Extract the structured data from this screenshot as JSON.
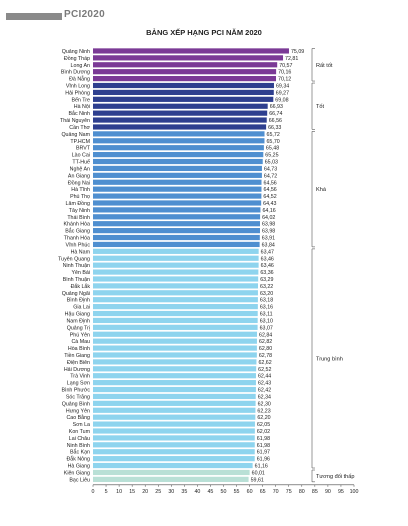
{
  "header": {
    "brand": "PCI2020"
  },
  "chart_data": {
    "type": "bar",
    "orientation": "horizontal",
    "title": "BẢNG XẾP HẠNG PCI NĂM 2020",
    "xlim": [
      0,
      100
    ],
    "xticks": [
      0,
      5,
      10,
      15,
      20,
      25,
      30,
      35,
      40,
      45,
      50,
      55,
      60,
      65,
      70,
      75,
      80,
      85,
      90,
      95,
      100
    ],
    "categories": [
      "Quảng Ninh",
      "Đồng Tháp",
      "Long An",
      "Bình Dương",
      "Đà Nẵng",
      "Vĩnh Long",
      "Hải Phòng",
      "Bến Tre",
      "Hà Nội",
      "Bắc Ninh",
      "Thái Nguyên",
      "Cần Thơ",
      "Quảng Nam",
      "TP.HCM",
      "BRVT",
      "Lào Cai",
      "TT-Huế",
      "Nghệ An",
      "An Giang",
      "Đồng Nai",
      "Hà Tĩnh",
      "Phú Thọ",
      "Lâm Đồng",
      "Tây Ninh",
      "Thái Bình",
      "Khánh Hòa",
      "Bắc Giang",
      "Thanh Hóa",
      "Vĩnh Phúc",
      "Hà Nam",
      "Tuyên Quang",
      "Ninh Thuận",
      "Yên Bái",
      "Bình Thuận",
      "Đắk Lắk",
      "Quảng Ngãi",
      "Bình Định",
      "Gia Lai",
      "Hậu Giang",
      "Nam Định",
      "Quảng Trị",
      "Phú Yên",
      "Cà Mau",
      "Hòa Bình",
      "Tiền Giang",
      "Điện Biên",
      "Hải Dương",
      "Trà Vinh",
      "Lạng Sơn",
      "Bình Phước",
      "Sóc Trăng",
      "Quảng Bình",
      "Hưng Yên",
      "Cao Bằng",
      "Sơn La",
      "Kon Tum",
      "Lai Châu",
      "Ninh Bình",
      "Bắc Kạn",
      "Đắk Nông",
      "Hà Giang",
      "Kiên Giang",
      "Bạc Liêu"
    ],
    "values": [
      "75,09",
      "72,81",
      "70,57",
      "70,16",
      "70,12",
      "69,34",
      "69,27",
      "69,08",
      "66,93",
      "66,74",
      "66,56",
      "66,33",
      "65,72",
      "65,70",
      "65,48",
      "65,25",
      "65,03",
      "64,73",
      "64,72",
      "64,56",
      "64,56",
      "64,52",
      "64,43",
      "64,16",
      "64,02",
      "63,98",
      "63,98",
      "63,91",
      "63,84",
      "63,47",
      "63,46",
      "63,46",
      "63,36",
      "63,29",
      "63,22",
      "63,20",
      "63,18",
      "63,16",
      "63,11",
      "63,10",
      "63,07",
      "62,84",
      "62,82",
      "62,80",
      "62,78",
      "62,62",
      "62,52",
      "62,44",
      "62,43",
      "62,42",
      "62,34",
      "62,30",
      "62,23",
      "62,20",
      "62,05",
      "62,02",
      "61,98",
      "61,98",
      "61,97",
      "61,96",
      "61,16",
      "60,01",
      "59,61"
    ],
    "groups": [
      {
        "label": "Rất tốt",
        "count": 5,
        "color": "#7b3a96"
      },
      {
        "label": "Tốt",
        "count": 7,
        "color": "#2e3f8f"
      },
      {
        "label": "Khá",
        "count": 17,
        "color": "#4f8fd0"
      },
      {
        "label": "Trung bình",
        "count": 32,
        "color": "#8ed4ee"
      },
      {
        "label": "Tương đối thấp",
        "count": 2,
        "color": "#b9e0d6"
      }
    ],
    "grid": false,
    "legend": "right brackets"
  }
}
